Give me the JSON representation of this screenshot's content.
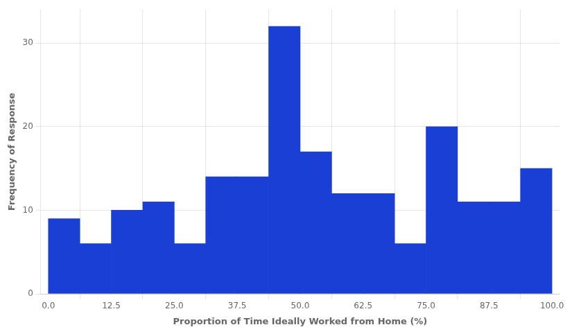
{
  "chart_data": {
    "type": "histogram",
    "xlabel": "Proportion of Time Ideally Worked from Home (%)",
    "ylabel": "Frequency of Response",
    "bins": [
      0,
      6.25,
      12.5,
      18.75,
      25.0,
      31.25,
      37.5,
      43.75,
      50.0,
      56.25,
      62.5,
      68.75,
      75.0,
      81.25,
      87.5,
      93.75,
      100.0
    ],
    "values": [
      9,
      6,
      10,
      11,
      6,
      14,
      14,
      32,
      17,
      12,
      12,
      6,
      20,
      11,
      11,
      15
    ],
    "color": "#1a3fd4",
    "xlim": [
      -1.5,
      101.5
    ],
    "xticks": [
      {
        "value": 0,
        "label": "0.0"
      },
      12.5,
      {
        "value": 25,
        "label": "25.0"
      },
      37.5,
      {
        "value": 50,
        "label": "50.0"
      },
      62.5,
      {
        "value": 75,
        "label": "75.0"
      },
      87.5,
      {
        "value": 100,
        "label": "100.0"
      }
    ],
    "ylim": [
      0,
      34
    ],
    "yticks": [
      0,
      10,
      20,
      30
    ],
    "grid": true
  }
}
